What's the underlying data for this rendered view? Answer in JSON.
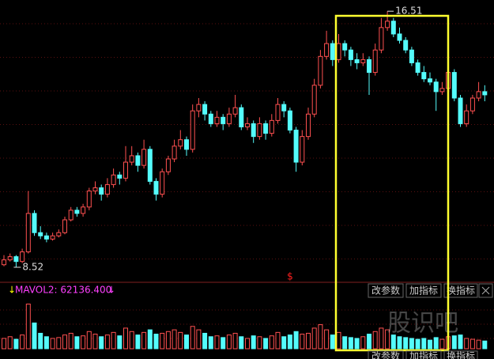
{
  "chart_data": {
    "type": "candlestick",
    "up_color": "#ff5050",
    "down_color": "#54fcfc",
    "grid": true,
    "ylim": [
      8.1,
      16.86
    ],
    "ohlc": [
      [
        8.6,
        8.9,
        8.55,
        8.75
      ],
      [
        8.75,
        8.95,
        8.7,
        8.85
      ],
      [
        8.85,
        8.9,
        8.52,
        8.7
      ],
      [
        8.7,
        9.1,
        8.65,
        9.0
      ],
      [
        9.0,
        10.9,
        8.95,
        10.2
      ],
      [
        10.2,
        10.3,
        9.5,
        9.6
      ],
      [
        9.6,
        9.8,
        9.4,
        9.5
      ],
      [
        9.5,
        9.6,
        9.3,
        9.4
      ],
      [
        9.4,
        9.6,
        9.35,
        9.5
      ],
      [
        9.5,
        9.7,
        9.45,
        9.6
      ],
      [
        9.6,
        10.1,
        9.55,
        10.0
      ],
      [
        10.0,
        10.4,
        9.95,
        10.3
      ],
      [
        10.3,
        10.4,
        10.1,
        10.2
      ],
      [
        10.2,
        10.5,
        10.1,
        10.4
      ],
      [
        10.4,
        11.0,
        10.3,
        10.9
      ],
      [
        10.9,
        11.2,
        10.8,
        11.0
      ],
      [
        11.0,
        11.1,
        10.6,
        10.8
      ],
      [
        10.8,
        11.3,
        10.7,
        11.1
      ],
      [
        11.1,
        11.6,
        11.0,
        11.4
      ],
      [
        11.4,
        11.5,
        11.1,
        11.3
      ],
      [
        11.3,
        12.3,
        11.2,
        11.8
      ],
      [
        11.8,
        12.3,
        11.7,
        12.0
      ],
      [
        12.0,
        12.1,
        11.5,
        11.7
      ],
      [
        11.7,
        12.5,
        11.6,
        12.2
      ],
      [
        12.2,
        12.3,
        11.1,
        11.2
      ],
      [
        11.2,
        11.3,
        10.6,
        10.8
      ],
      [
        10.8,
        11.6,
        10.7,
        11.5
      ],
      [
        11.5,
        12.0,
        11.4,
        11.9
      ],
      [
        11.9,
        12.5,
        11.8,
        12.3
      ],
      [
        12.3,
        12.8,
        12.2,
        12.5
      ],
      [
        12.5,
        12.6,
        12.0,
        12.2
      ],
      [
        12.2,
        13.6,
        12.1,
        13.4
      ],
      [
        13.4,
        13.8,
        13.2,
        13.6
      ],
      [
        13.6,
        13.7,
        13.1,
        13.3
      ],
      [
        13.3,
        13.4,
        12.9,
        13.0
      ],
      [
        13.0,
        13.4,
        12.9,
        13.2
      ],
      [
        13.2,
        13.3,
        12.8,
        13.0
      ],
      [
        13.0,
        13.5,
        12.9,
        13.3
      ],
      [
        13.3,
        13.9,
        13.2,
        13.5
      ],
      [
        13.5,
        13.6,
        12.8,
        12.9
      ],
      [
        12.9,
        13.2,
        12.8,
        13.0
      ],
      [
        13.0,
        13.1,
        12.4,
        12.6
      ],
      [
        12.6,
        13.2,
        12.5,
        13.0
      ],
      [
        13.0,
        13.1,
        12.5,
        12.7
      ],
      [
        12.7,
        13.3,
        12.6,
        13.1
      ],
      [
        13.1,
        13.8,
        13.0,
        13.6
      ],
      [
        13.6,
        13.7,
        13.2,
        13.4
      ],
      [
        13.4,
        13.5,
        12.7,
        12.8
      ],
      [
        12.8,
        12.9,
        11.5,
        11.8
      ],
      [
        11.8,
        12.8,
        11.7,
        12.6
      ],
      [
        12.6,
        13.5,
        12.5,
        13.3
      ],
      [
        13.3,
        14.4,
        13.2,
        14.2
      ],
      [
        14.2,
        15.3,
        14.1,
        15.1
      ],
      [
        15.1,
        15.9,
        15.0,
        15.5
      ],
      [
        15.5,
        15.6,
        14.8,
        15.0
      ],
      [
        15.0,
        15.8,
        14.9,
        15.5
      ],
      [
        15.5,
        15.6,
        15.1,
        15.3
      ],
      [
        15.3,
        15.4,
        14.8,
        15.0
      ],
      [
        15.0,
        15.2,
        14.7,
        14.9
      ],
      [
        14.9,
        15.2,
        14.8,
        15.0
      ],
      [
        15.0,
        15.1,
        13.9,
        14.6
      ],
      [
        14.6,
        15.5,
        14.5,
        15.3
      ],
      [
        15.3,
        16.3,
        15.2,
        16.0
      ],
      [
        16.0,
        16.51,
        15.9,
        16.2
      ],
      [
        16.2,
        16.3,
        15.7,
        15.8
      ],
      [
        15.8,
        16.0,
        15.5,
        15.6
      ],
      [
        15.6,
        15.7,
        15.2,
        15.3
      ],
      [
        15.3,
        15.4,
        14.8,
        14.9
      ],
      [
        14.9,
        15.0,
        14.5,
        14.6
      ],
      [
        14.6,
        14.8,
        14.3,
        14.4
      ],
      [
        14.4,
        14.6,
        14.2,
        14.3
      ],
      [
        14.3,
        14.4,
        13.4,
        14.0
      ],
      [
        14.0,
        14.3,
        13.9,
        14.1
      ],
      [
        14.1,
        14.8,
        14.0,
        14.6
      ],
      [
        14.6,
        14.7,
        13.7,
        13.8
      ],
      [
        13.8,
        13.9,
        12.9,
        13.0
      ],
      [
        13.0,
        13.6,
        12.9,
        13.4
      ],
      [
        13.4,
        13.9,
        13.3,
        13.8
      ],
      [
        13.8,
        14.3,
        13.7,
        14.0
      ],
      [
        14.0,
        14.2,
        13.7,
        13.9
      ]
    ],
    "volume_ylim": [
      0,
      290000
    ],
    "volume": [
      60000,
      70000,
      55000,
      80000,
      260000,
      150000,
      90000,
      70000,
      60000,
      65000,
      80000,
      90000,
      70000,
      75000,
      100000,
      85000,
      70000,
      80000,
      95000,
      75000,
      120000,
      100000,
      80000,
      95000,
      110000,
      85000,
      90000,
      100000,
      110000,
      95000,
      80000,
      130000,
      110000,
      90000,
      70000,
      75000,
      65000,
      80000,
      90000,
      70000,
      60000,
      75000,
      70000,
      60000,
      75000,
      95000,
      70000,
      80000,
      100000,
      85000,
      90000,
      120000,
      140000,
      110000,
      80000,
      95000,
      70000,
      65000,
      60000,
      70000,
      85000,
      100000,
      120000,
      110000,
      80000,
      70000,
      65000,
      60000,
      55000,
      60000,
      50000,
      65000,
      55000,
      70000,
      75000,
      80000,
      60000,
      55000,
      50000,
      45000
    ],
    "high_label": "16.51",
    "high_index": 63,
    "low_label": "8.52",
    "low_index": 2,
    "marker": "$",
    "indicator_label": "MAVOL2: 62136.400",
    "buttons": [
      "改参数",
      "加指标",
      "换指标"
    ],
    "watermark": "股识吧"
  }
}
